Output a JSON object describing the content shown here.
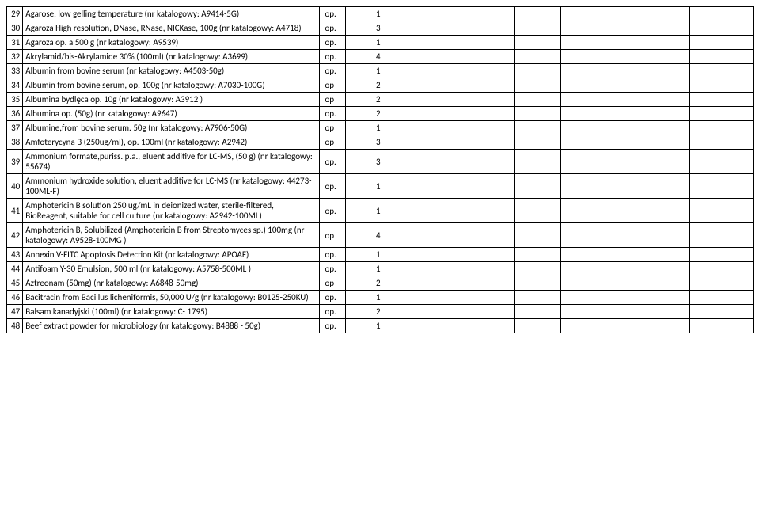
{
  "rows": [
    {
      "num": "29",
      "desc": "Agarose, low gelling temperature  (nr katalogowy: A9414-5G)",
      "unit": "op.",
      "qty": "1"
    },
    {
      "num": "30",
      "desc": "Agaroza High resolution, DNase, RNase, NICKase, 100g (nr katalogowy: A4718)",
      "unit": "op.",
      "qty": "3"
    },
    {
      "num": "31",
      "desc": "Agaroza op. a 500 g  (nr katalogowy: A9539)",
      "unit": "op.",
      "qty": "1"
    },
    {
      "num": "32",
      "desc": "Akrylamid/bis-Akrylamide 30% (100ml) (nr katalogowy: A3699)",
      "unit": "op.",
      "qty": "4"
    },
    {
      "num": "33",
      "desc": "Albumin from bovine serum  (nr katalogowy: A4503-50g)",
      "unit": "op.",
      "qty": "1"
    },
    {
      "num": "34",
      "desc": "Albumin from bovine serum, op. 100g (nr katalogowy: A7030-100G)",
      "unit": "op",
      "qty": "2"
    },
    {
      "num": "35",
      "desc": "Albumina bydlęca op. 10g (nr katalogowy: A3912 )",
      "unit": "op",
      "qty": "2"
    },
    {
      "num": "36",
      "desc": "Albumina op. (50g) (nr katalogowy: A9647)",
      "unit": "op.",
      "qty": "2"
    },
    {
      "num": "37",
      "desc": "Albumine,from bovine serum. 50g (nr katalogowy: A7906-50G)",
      "unit": "op",
      "qty": "1"
    },
    {
      "num": "38",
      "desc": "Amfoterycyna B (250ug/ml), op. 100ml (nr katalogowy: A2942)",
      "unit": "op",
      "qty": "3"
    },
    {
      "num": "39",
      "desc": "Ammonium formate,puriss. p.a., eluent additive for LC-MS, (50 g) (nr katalogowy: 55674)",
      "unit": "op.",
      "qty": "3"
    },
    {
      "num": "40",
      "desc": "Ammonium hydroxide solution, eluent additive for LC-MS (nr katalogowy: 44273-100ML-F)",
      "unit": "op.",
      "qty": "1"
    },
    {
      "num": "41",
      "desc": "Amphotericin B solution 250 ug/mL in deionized water, sterile-filtered, BioReagent, suitable for cell culture  (nr katalogowy: A2942-100ML)",
      "unit": "op.",
      "qty": "1"
    },
    {
      "num": "42",
      "desc": "Amphotericin B, Solubilized  (Amphotericin B from Streptomyces sp.) 100mg (nr katalogowy: A9528-100MG )",
      "unit": "op",
      "qty": "4"
    },
    {
      "num": "43",
      "desc": "Annexin V-FITC Apoptosis Detection Kit (nr katalogowy: APOAF)",
      "unit": "op.",
      "qty": "1"
    },
    {
      "num": "44",
      "desc": "Antifoam Y-30 Emulsion, 500 ml  (nr katalogowy: A5758-500ML )",
      "unit": "op.",
      "qty": "1"
    },
    {
      "num": "45",
      "desc": "Aztreonam (50mg) (nr katalogowy: A6848-50mg)",
      "unit": "op",
      "qty": "2"
    },
    {
      "num": "46",
      "desc": "Bacitracin from Bacillus licheniformis, 50,000 U/g  (nr katalogowy: B0125-250KU)",
      "unit": "op.",
      "qty": "1"
    },
    {
      "num": "47",
      "desc": "Balsam kanadyjski (100ml) (nr katalogowy: C- 1795)",
      "unit": "op.",
      "qty": "2"
    },
    {
      "num": "48",
      "desc": "Beef extract powder   for microbiology   (nr katalogowy: B4888 - 50g)",
      "unit": "op.",
      "qty": "1"
    }
  ]
}
